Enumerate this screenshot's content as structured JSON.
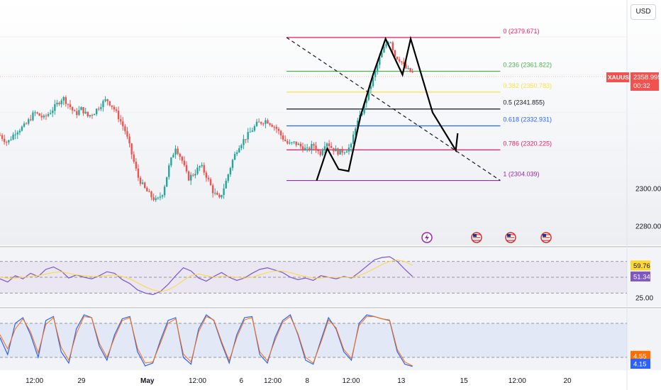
{
  "currency_button": "USD",
  "symbol_tag": {
    "symbol": "XAUUSD",
    "price": "2358.995",
    "countdown": "00:32"
  },
  "colors": {
    "bull": "#26a69a",
    "bear": "#ef5350",
    "fib_0": "#e91e63",
    "fib_236": "#4caf50",
    "fib_382": "#f9e04b",
    "fib_5": "#131722",
    "fib_618": "#2962ff",
    "fib_786": "#e91e63",
    "fib_1": "#9c27b0",
    "rsi": "#7e57c2",
    "rsi_ma": "#fdd835",
    "stoch_k": "#2962ff",
    "stoch_d": "#ff6d00"
  },
  "icons": [
    "lightning-event-icon",
    "us-flag-event-icon",
    "us-flag-event-icon",
    "us-flag-event-icon"
  ],
  "chart_data": [
    {
      "type": "candlestick",
      "symbol": "XAUUSD",
      "y_axis": {
        "ylim": [
          2272,
          2392
        ],
        "ticks": [
          2380,
          2360,
          2340,
          2320,
          2300,
          2280
        ],
        "tick_labels": [
          "",
          "",
          "",
          "",
          "2300.000",
          "2280.000"
        ]
      },
      "x_axis": {
        "tick_labels": [
          "12:00",
          "29",
          "May",
          "12:00",
          "6",
          "12:00",
          "8",
          "12:00",
          "13",
          "15",
          "12:00",
          "20"
        ],
        "tick_positions": [
          0.055,
          0.13,
          0.235,
          0.315,
          0.385,
          0.435,
          0.49,
          0.56,
          0.64,
          0.74,
          0.825,
          0.905
        ]
      },
      "price_path": [
        [
          0.0,
          2328
        ],
        [
          0.012,
          2324
        ],
        [
          0.025,
          2330
        ],
        [
          0.04,
          2333
        ],
        [
          0.055,
          2340
        ],
        [
          0.07,
          2337
        ],
        [
          0.085,
          2342
        ],
        [
          0.1,
          2348
        ],
        [
          0.11,
          2344
        ],
        [
          0.12,
          2339
        ],
        [
          0.13,
          2342
        ],
        [
          0.14,
          2338
        ],
        [
          0.15,
          2340
        ],
        [
          0.16,
          2344
        ],
        [
          0.17,
          2347
        ],
        [
          0.18,
          2343
        ],
        [
          0.19,
          2337
        ],
        [
          0.2,
          2330
        ],
        [
          0.21,
          2318
        ],
        [
          0.22,
          2306
        ],
        [
          0.23,
          2300
        ],
        [
          0.24,
          2296
        ],
        [
          0.25,
          2293
        ],
        [
          0.26,
          2298
        ],
        [
          0.27,
          2312
        ],
        [
          0.28,
          2322
        ],
        [
          0.29,
          2315
        ],
        [
          0.3,
          2305
        ],
        [
          0.31,
          2308
        ],
        [
          0.32,
          2312
        ],
        [
          0.33,
          2306
        ],
        [
          0.34,
          2298
        ],
        [
          0.35,
          2294
        ],
        [
          0.36,
          2303
        ],
        [
          0.37,
          2314
        ],
        [
          0.38,
          2322
        ],
        [
          0.395,
          2328
        ],
        [
          0.41,
          2334
        ],
        [
          0.425,
          2336
        ],
        [
          0.44,
          2332
        ],
        [
          0.45,
          2327
        ],
        [
          0.46,
          2323
        ],
        [
          0.47,
          2324
        ],
        [
          0.48,
          2322
        ],
        [
          0.49,
          2320
        ],
        [
          0.5,
          2323
        ],
        [
          0.51,
          2318
        ],
        [
          0.52,
          2325
        ],
        [
          0.53,
          2321
        ],
        [
          0.54,
          2319
        ],
        [
          0.55,
          2320
        ],
        [
          0.56,
          2322
        ],
        [
          0.566,
          2332
        ],
        [
          0.575,
          2338
        ],
        [
          0.585,
          2348
        ],
        [
          0.595,
          2358
        ],
        [
          0.605,
          2368
        ],
        [
          0.615,
          2376
        ],
        [
          0.622,
          2379
        ],
        [
          0.63,
          2370
        ],
        [
          0.638,
          2368
        ],
        [
          0.645,
          2364
        ],
        [
          0.652,
          2362
        ],
        [
          0.658,
          2361
        ]
      ],
      "price_path_note": "x is fraction of plot width; y is price",
      "fibonacci": {
        "levels": [
          {
            "label": "0 (2379.671)",
            "price": 2379.671,
            "color_key": "fib_0"
          },
          {
            "label": "0.236 (2361.822)",
            "price": 2361.822,
            "color_key": "fib_236"
          },
          {
            "label": "0.382 (2350.783)",
            "price": 2350.783,
            "color_key": "fib_382"
          },
          {
            "label": "0.5 (2341.855)",
            "price": 2341.855,
            "color_key": "fib_5"
          },
          {
            "label": "0.618 (2332.931)",
            "price": 2332.931,
            "color_key": "fib_618"
          },
          {
            "label": "0.786 (2320.225)",
            "price": 2320.225,
            "color_key": "fib_786"
          },
          {
            "label": "1 (2304.039)",
            "price": 2304.039,
            "color_key": "fib_1"
          }
        ],
        "x_range": [
          0.457,
          0.798
        ]
      },
      "trendline_dashed": [
        [
          0.457,
          2379.671
        ],
        [
          0.798,
          2304.039
        ]
      ],
      "projection_zigzag": [
        [
          0.505,
          2304
        ],
        [
          0.522,
          2321
        ],
        [
          0.54,
          2310
        ],
        [
          0.556,
          2309
        ],
        [
          0.575,
          2338
        ],
        [
          0.595,
          2360
        ],
        [
          0.615,
          2379
        ],
        [
          0.642,
          2360
        ],
        [
          0.655,
          2379
        ],
        [
          0.69,
          2340
        ],
        [
          0.727,
          2320
        ],
        [
          0.73,
          2329
        ]
      ],
      "current_price": 2358.995
    },
    {
      "type": "line",
      "name": "RSI",
      "ylim": [
        15,
        85
      ],
      "y_tick_labels": [
        "25.00"
      ],
      "bands": [
        70,
        50,
        30
      ],
      "series": [
        {
          "name": "",
          "color_key": "rsi",
          "values": [
            48,
            44,
            52,
            48,
            55,
            51,
            60,
            63,
            58,
            49,
            53,
            50,
            48,
            52,
            57,
            55,
            47,
            42,
            34,
            30,
            28,
            32,
            41,
            52,
            62,
            58,
            49,
            45,
            51,
            56,
            50,
            46,
            49,
            55,
            60,
            62,
            59,
            56,
            50,
            47,
            49,
            46,
            52,
            50,
            48,
            51,
            49,
            56,
            64,
            72,
            75,
            76,
            70,
            60,
            51
          ]
        },
        {
          "name": "",
          "color_key": "rsi_ma",
          "values": [
            50,
            49,
            49,
            50,
            51,
            52,
            54,
            56,
            57,
            55,
            53,
            52,
            51,
            51,
            52,
            53,
            51,
            48,
            43,
            38,
            34,
            32,
            34,
            39,
            46,
            52,
            54,
            52,
            50,
            51,
            51,
            50,
            49,
            50,
            53,
            56,
            58,
            58,
            56,
            53,
            51,
            49,
            49,
            50,
            50,
            50,
            50,
            52,
            56,
            61,
            66,
            70,
            72,
            70,
            65
          ]
        }
      ],
      "last_values": {
        "primary": "51.34",
        "secondary": "59.76"
      }
    },
    {
      "type": "line",
      "name": "Stochastic",
      "ylim": [
        0,
        100
      ],
      "bands": [
        80,
        20
      ],
      "series": [
        {
          "name": "",
          "color_key": "stoch_k",
          "values": [
            55,
            25,
            80,
            90,
            60,
            20,
            85,
            92,
            30,
            10,
            70,
            95,
            90,
            40,
            15,
            60,
            88,
            92,
            30,
            5,
            10,
            50,
            85,
            90,
            20,
            8,
            70,
            95,
            85,
            45,
            10,
            60,
            90,
            92,
            25,
            10,
            55,
            85,
            95,
            60,
            15,
            8,
            50,
            90,
            70,
            30,
            15,
            80,
            95,
            92,
            88,
            85,
            30,
            8,
            4
          ]
        },
        {
          "name": "",
          "color_key": "stoch_d",
          "values": [
            60,
            35,
            70,
            88,
            65,
            28,
            78,
            90,
            38,
            15,
            62,
            92,
            90,
            45,
            20,
            55,
            85,
            90,
            36,
            10,
            12,
            45,
            80,
            88,
            26,
            12,
            65,
            92,
            86,
            48,
            14,
            55,
            86,
            90,
            30,
            14,
            50,
            82,
            92,
            62,
            20,
            10,
            46,
            86,
            72,
            34,
            18,
            76,
            92,
            92,
            88,
            86,
            34,
            12,
            5
          ]
        }
      ],
      "last_values": {
        "primary": "4.15",
        "secondary": "4.55"
      }
    }
  ]
}
